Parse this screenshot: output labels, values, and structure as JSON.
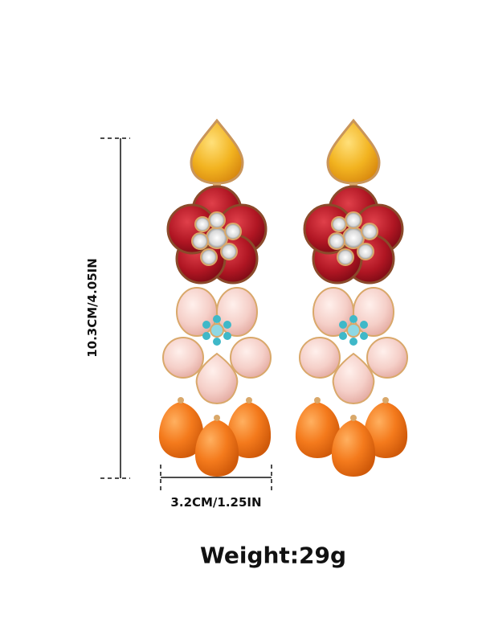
{
  "dimensions": {
    "height_label": "10.3CM/4.05IN",
    "width_label": "3.2CM/1.25IN"
  },
  "weight_label": "Weight:29g",
  "colors": {
    "yellow_stone": "#f2b320",
    "red_petal": "#b01623",
    "pink_petal": "#f5cfc8",
    "turquoise": "#3fb8c8",
    "orange_drop": "#f47a1c",
    "gold": "#d9a86a",
    "line": "#111111"
  }
}
